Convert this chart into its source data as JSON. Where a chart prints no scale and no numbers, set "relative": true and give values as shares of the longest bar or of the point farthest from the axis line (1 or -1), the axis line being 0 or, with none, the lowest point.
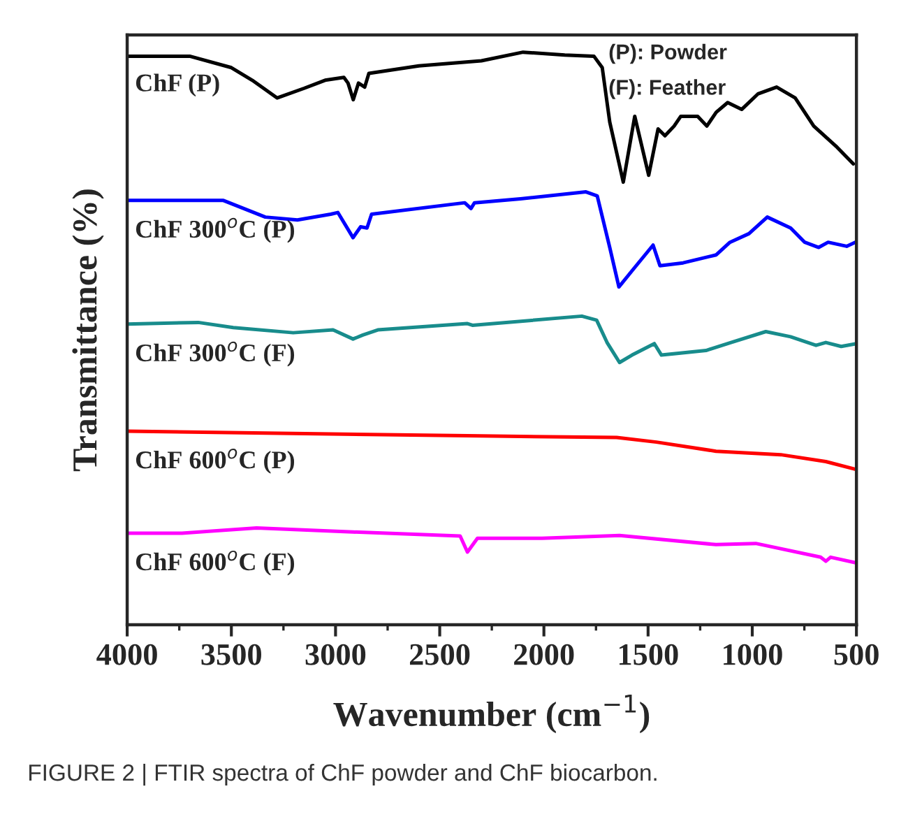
{
  "chart_data": {
    "type": "line",
    "relative": true,
    "xlabel": "Wavenumber (cm$^{−1}$)",
    "ylabel": "Transmittance (%)",
    "xlim": [
      4000,
      500
    ],
    "xticks": [
      4000,
      3500,
      3000,
      2500,
      2000,
      1500,
      1000,
      500
    ],
    "grid": false,
    "legend": false,
    "annotations": [
      "(P): Powder",
      "(F): Feather",
      "FIGURE 2 | FTIR spectra of ChF powder and ChF biocarbon."
    ],
    "series": [
      {
        "name": "ChF (P)",
        "color": "#000000",
        "x": [
          4000,
          3700,
          3500,
          3400,
          3280,
          3150,
          3050,
          2960,
          2940,
          2915,
          2890,
          2860,
          2840,
          2600,
          2300,
          2100,
          1900,
          1760,
          1720,
          1684,
          1619,
          1564,
          1497,
          1452,
          1419,
          1375,
          1343,
          1262,
          1218,
          1173,
          1118,
          1051,
          973,
          883,
          794,
          705,
          593,
          515
        ],
        "values": [
          0.993,
          0.993,
          0.973,
          0.951,
          0.92,
          0.937,
          0.951,
          0.956,
          0.946,
          0.917,
          0.946,
          0.939,
          0.963,
          0.976,
          0.985,
          1,
          0.995,
          0.993,
          0.973,
          0.878,
          0.773,
          0.888,
          0.785,
          0.866,
          0.854,
          0.871,
          0.888,
          0.888,
          0.871,
          0.895,
          0.912,
          0.9,
          0.927,
          0.939,
          0.92,
          0.871,
          0.834,
          0.805
        ]
      },
      {
        "name": "ChF 300$^{o}$C (P)",
        "color": "#0000ff",
        "x": [
          4000,
          3538,
          3337,
          3183,
          3023,
          2989,
          2916,
          2880,
          2849,
          2827,
          2380,
          2350,
          2333,
          2112,
          1798,
          1744,
          1684,
          1640,
          1573,
          1476,
          1443,
          1332,
          1173,
          1107,
          1016,
          928,
          816,
          748,
          681,
          636,
          547,
          506
        ],
        "values": [
          0.741,
          0.741,
          0.712,
          0.707,
          0.717,
          0.72,
          0.676,
          0.695,
          0.693,
          0.717,
          0.737,
          0.727,
          0.737,
          0.744,
          0.756,
          0.749,
          0.659,
          0.59,
          0.62,
          0.663,
          0.627,
          0.632,
          0.646,
          0.668,
          0.683,
          0.712,
          0.693,
          0.668,
          0.659,
          0.668,
          0.661,
          0.668
        ]
      },
      {
        "name": "ChF 300$^{o}$C (F)",
        "color": "#188c8c",
        "x": [
          4000,
          3659,
          3491,
          3203,
          3012,
          2916,
          2869,
          2797,
          2367,
          2343,
          1818,
          1747,
          1697,
          1637,
          1577,
          1470,
          1436,
          1222,
          1102,
          935,
          816,
          694,
          647,
          573,
          500
        ],
        "values": [
          0.525,
          0.528,
          0.519,
          0.51,
          0.515,
          0.499,
          0.506,
          0.515,
          0.526,
          0.523,
          0.539,
          0.532,
          0.493,
          0.458,
          0.471,
          0.491,
          0.471,
          0.479,
          0.493,
          0.512,
          0.503,
          0.488,
          0.493,
          0.486,
          0.491
        ]
      },
      {
        "name": "ChF 600$^{o}$C (P)",
        "color": "#ff0000",
        "x": [
          4000,
          2367,
          1651,
          1460,
          1174,
          863,
          647,
          500
        ],
        "values": [
          0.338,
          0.33,
          0.327,
          0.319,
          0.303,
          0.297,
          0.285,
          0.271
        ]
      },
      {
        "name": "ChF 600$^{o}$C (F)",
        "color": "#ff00ff",
        "x": [
          4000,
          3737,
          3379,
          2916,
          2402,
          2367,
          2319,
          2009,
          1637,
          1174,
          983,
          672,
          647,
          624,
          500
        ],
        "values": [
          0.16,
          0.16,
          0.169,
          0.162,
          0.155,
          0.127,
          0.151,
          0.151,
          0.156,
          0.14,
          0.142,
          0.118,
          0.111,
          0.118,
          0.108
        ]
      }
    ]
  }
}
